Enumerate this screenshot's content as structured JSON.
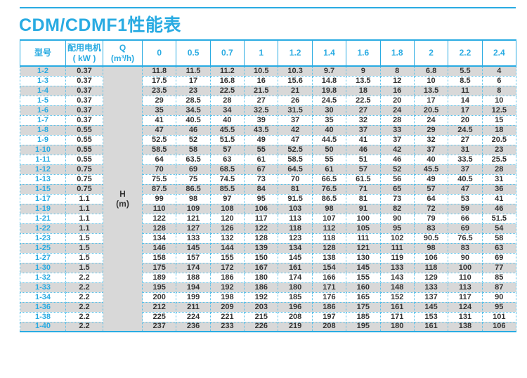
{
  "page": {
    "title": "CDM/CDMF1性能表"
  },
  "colors": {
    "accent": "#29abe2",
    "row_alt_gray": "#d8d8d8",
    "dotted_border": "#55c0ea",
    "data_text": "#333333"
  },
  "table": {
    "header": {
      "model_label": "型号",
      "motor_label_line1": "配用电机",
      "motor_label_line2": "( kW )",
      "q_label_line1": "Q",
      "q_label_line2": "(m³/h)",
      "flow_columns": [
        "0",
        "0.5",
        "0.7",
        "1",
        "1.2",
        "1.4",
        "1.6",
        "1.8",
        "2",
        "2.2",
        "2.4"
      ]
    },
    "h_unit_line1": "H",
    "h_unit_line2": "(m)",
    "rows": [
      {
        "model": "1-2",
        "motor_kw": "0.37",
        "values": [
          11.8,
          11.5,
          11.2,
          10.5,
          10.3,
          9.7,
          9,
          8,
          6.8,
          5.5,
          4
        ]
      },
      {
        "model": "1-3",
        "motor_kw": "0.37",
        "values": [
          17.5,
          17,
          16.8,
          16,
          15.6,
          14.8,
          13.5,
          12,
          10,
          8.5,
          6
        ]
      },
      {
        "model": "1-4",
        "motor_kw": "0.37",
        "values": [
          23.5,
          23,
          22.5,
          21.5,
          21,
          19.8,
          18,
          16,
          13.5,
          11,
          8
        ]
      },
      {
        "model": "1-5",
        "motor_kw": "0.37",
        "values": [
          29,
          28.5,
          28,
          27,
          26,
          24.5,
          22.5,
          20,
          17,
          14,
          10
        ]
      },
      {
        "model": "1-6",
        "motor_kw": "0.37",
        "values": [
          35,
          34.5,
          34,
          32.5,
          31.5,
          30,
          27,
          24,
          20.5,
          17,
          12.5
        ]
      },
      {
        "model": "1-7",
        "motor_kw": "0.37",
        "values": [
          41,
          40.5,
          40,
          39,
          37,
          35,
          32,
          28,
          24,
          20,
          15
        ]
      },
      {
        "model": "1-8",
        "motor_kw": "0.55",
        "values": [
          47,
          46,
          45.5,
          43.5,
          42,
          40,
          37,
          33,
          29,
          24.5,
          18
        ]
      },
      {
        "model": "1-9",
        "motor_kw": "0.55",
        "values": [
          52.5,
          52,
          51.5,
          49,
          47,
          44.5,
          41,
          37,
          32,
          27,
          20.5
        ]
      },
      {
        "model": "1-10",
        "motor_kw": "0.55",
        "values": [
          58.5,
          58,
          57,
          55,
          52.5,
          50,
          46,
          42,
          37,
          31,
          23
        ]
      },
      {
        "model": "1-11",
        "motor_kw": "0.55",
        "values": [
          64,
          63.5,
          63,
          61,
          58.5,
          55,
          51,
          46,
          40,
          33.5,
          25.5
        ]
      },
      {
        "model": "1-12",
        "motor_kw": "0.75",
        "values": [
          70,
          69,
          68.5,
          67,
          64.5,
          61,
          57,
          52,
          45.5,
          37,
          28
        ]
      },
      {
        "model": "1-13",
        "motor_kw": "0.75",
        "values": [
          75.5,
          75,
          74.5,
          73,
          70,
          66.5,
          61.5,
          56,
          49,
          40.5,
          31
        ]
      },
      {
        "model": "1-15",
        "motor_kw": "0.75",
        "values": [
          87.5,
          86.5,
          85.5,
          84,
          81,
          76.5,
          71,
          65,
          57,
          47,
          36
        ]
      },
      {
        "model": "1-17",
        "motor_kw": "1.1",
        "values": [
          99,
          98,
          97,
          95,
          91.5,
          86.5,
          81,
          73,
          64,
          53,
          41
        ]
      },
      {
        "model": "1-19",
        "motor_kw": "1.1",
        "values": [
          110,
          109,
          108,
          106,
          103,
          98,
          91,
          82,
          72,
          59,
          46
        ]
      },
      {
        "model": "1-21",
        "motor_kw": "1.1",
        "values": [
          122,
          121,
          120,
          117,
          113,
          107,
          100,
          90,
          79,
          66,
          51.5
        ]
      },
      {
        "model": "1-22",
        "motor_kw": "1.1",
        "values": [
          128,
          127,
          126,
          122,
          118,
          112,
          105,
          95,
          83,
          69,
          54
        ]
      },
      {
        "model": "1-23",
        "motor_kw": "1.5",
        "values": [
          134,
          133,
          132,
          128,
          123,
          118,
          111,
          102,
          90.5,
          76.5,
          58
        ]
      },
      {
        "model": "1-25",
        "motor_kw": "1.5",
        "values": [
          146,
          145,
          144,
          139,
          134,
          128,
          121,
          111,
          98,
          83,
          63
        ]
      },
      {
        "model": "1-27",
        "motor_kw": "1.5",
        "values": [
          158,
          157,
          155,
          150,
          145,
          138,
          130,
          119,
          106,
          90,
          69
        ]
      },
      {
        "model": "1-30",
        "motor_kw": "1.5",
        "values": [
          175,
          174,
          172,
          167,
          161,
          154,
          145,
          133,
          118,
          100,
          77
        ]
      },
      {
        "model": "1-32",
        "motor_kw": "2.2",
        "values": [
          189,
          188,
          186,
          180,
          174,
          166,
          155,
          143,
          129,
          110,
          85
        ]
      },
      {
        "model": "1-33",
        "motor_kw": "2.2",
        "values": [
          195,
          194,
          192,
          186,
          180,
          171,
          160,
          148,
          133,
          113,
          87
        ]
      },
      {
        "model": "1-34",
        "motor_kw": "2.2",
        "values": [
          200,
          199,
          198,
          192,
          185,
          176,
          165,
          152,
          137,
          117,
          90
        ]
      },
      {
        "model": "1-36",
        "motor_kw": "2.2",
        "values": [
          212,
          211,
          209,
          203,
          196,
          186,
          175,
          161,
          145,
          124,
          95
        ]
      },
      {
        "model": "1-38",
        "motor_kw": "2.2",
        "values": [
          225,
          224,
          221,
          215,
          208,
          197,
          185,
          171,
          153,
          131,
          101
        ]
      },
      {
        "model": "1-40",
        "motor_kw": "2.2",
        "values": [
          237,
          236,
          233,
          226,
          219,
          208,
          195,
          180,
          161,
          138,
          106
        ]
      }
    ]
  }
}
